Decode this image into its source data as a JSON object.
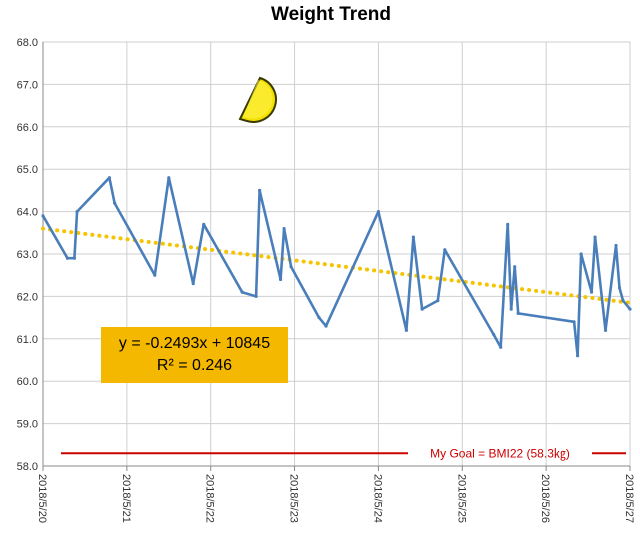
{
  "chart_data": {
    "type": "line",
    "title": "Weight Trend",
    "ylim": [
      58.0,
      68.0
    ],
    "y_ticks": [
      "58.0",
      "59.0",
      "60.0",
      "61.0",
      "62.0",
      "63.0",
      "64.0",
      "65.0",
      "66.0",
      "67.0",
      "68.0"
    ],
    "x_ticks": [
      "2018/5/20",
      "2018/5/21",
      "2018/5/22",
      "2018/5/23",
      "2018/5/24",
      "2018/5/25",
      "2018/5/26",
      "2018/5/27"
    ],
    "xlim": [
      "2018/5/20 00:00",
      "2018/5/27 00:00"
    ],
    "grid": true,
    "series": [
      {
        "color": "#4a7ebb",
        "x": [
          "2018/5/20 00:00",
          "2018/5/20 07:00",
          "2018/5/20 09:00",
          "2018/5/20 09:45",
          "2018/5/20 19:00",
          "2018/5/20 20:30",
          "2018/5/21 08:00",
          "2018/5/21 12:00",
          "2018/5/21 19:00",
          "2018/5/21 22:00",
          "2018/5/22 09:00",
          "2018/5/22 13:00",
          "2018/5/22 14:00",
          "2018/5/22 20:00",
          "2018/5/22 21:00",
          "2018/5/22 23:00",
          "2018/5/23 07:00",
          "2018/5/23 09:00",
          "2018/5/24 00:00",
          "2018/5/24 08:00",
          "2018/5/24 10:00",
          "2018/5/24 12:30",
          "2018/5/24 17:00",
          "2018/5/24 19:00",
          "2018/5/25 09:00",
          "2018/5/25 11:00",
          "2018/5/25 13:00",
          "2018/5/25 14:00",
          "2018/5/25 15:00",
          "2018/5/25 16:00",
          "2018/5/26 08:00",
          "2018/5/26 09:00",
          "2018/5/26 10:00",
          "2018/5/26 13:00",
          "2018/5/26 14:00",
          "2018/5/26 17:00",
          "2018/5/26 20:00",
          "2018/5/26 21:00",
          "2018/5/26 22:00",
          "2018/5/27 00:00"
        ],
        "values": [
          63.9,
          62.9,
          62.9,
          64.0,
          64.8,
          64.2,
          62.5,
          64.8,
          62.3,
          63.7,
          62.1,
          62.0,
          64.5,
          62.4,
          63.6,
          62.7,
          61.5,
          61.3,
          64.0,
          61.2,
          63.4,
          61.7,
          61.9,
          63.1,
          61.1,
          60.8,
          63.7,
          61.7,
          62.7,
          61.6,
          61.4,
          60.6,
          63.0,
          62.1,
          63.4,
          61.2,
          63.2,
          62.2,
          61.9,
          61.7
        ]
      }
    ],
    "trendline": {
      "style": "dotted",
      "color": "#f5c400",
      "y_start": 63.6,
      "y_end": 61.85,
      "equation": "y = -0.2493x + 10845",
      "r_squared": "R² = 0.246"
    },
    "goal": {
      "value": 58.3,
      "color": "#cc0000",
      "label": "My Goal = BMI22 (58.3㎏)"
    }
  }
}
